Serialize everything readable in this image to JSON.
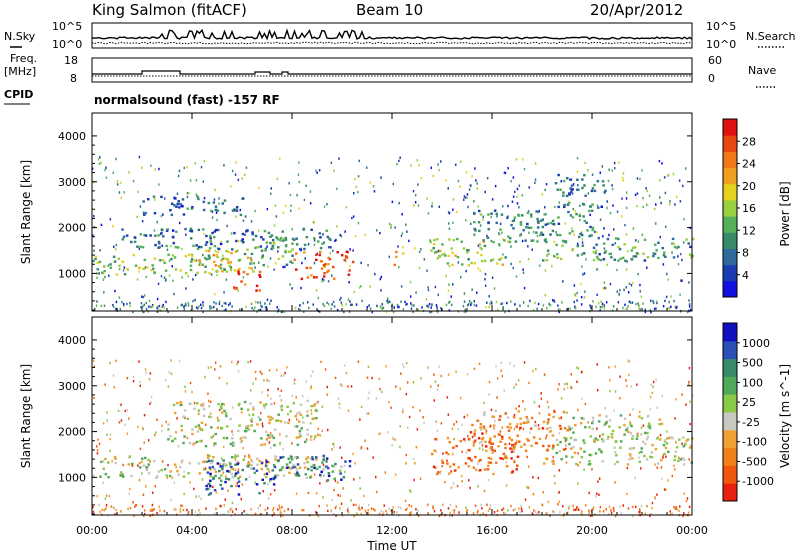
{
  "header": {
    "station": "King Salmon (fitACF)",
    "beam": "Beam 10",
    "date": "20/Apr/2012"
  },
  "strip_labels": {
    "nsky": "N.Sky",
    "nsky_ticks": [
      "10^5",
      "10^0"
    ],
    "nsearch": "N.Search",
    "nsearch_ticks": [
      "10^5",
      "10^0"
    ],
    "freq": "Freq.",
    "freq_unit": "[MHz]",
    "freq_ticks": [
      "18",
      "8"
    ],
    "nave": "Nave",
    "nave_ticks": [
      "60",
      "0"
    ],
    "cpid": "CPID",
    "cpid_text": "normalsound (fast) -157 RF"
  },
  "colors": {
    "power": [
      "#1010e0",
      "#1a3cb0",
      "#2e6a9a",
      "#3a8a6a",
      "#56b05a",
      "#9ad040",
      "#e6d020",
      "#f0a020",
      "#f07818",
      "#e84810",
      "#e01010"
    ],
    "velocity": [
      "#1010c0",
      "#2a50b8",
      "#3a8a6a",
      "#52a85a",
      "#8ac848",
      "#c8c8c0",
      "#f0a030",
      "#f08018",
      "#f05810",
      "#e82010"
    ]
  },
  "chart_data": [
    {
      "type": "heatmap",
      "title": "",
      "xlabel": "Time UT",
      "ylabel": "Slant Range [km]",
      "x_ticks": [
        "00:00",
        "04:00",
        "08:00",
        "12:00",
        "16:00",
        "20:00",
        "00:00"
      ],
      "y_ticks": [
        "1000",
        "2000",
        "3000",
        "4000"
      ],
      "ylim": [
        180,
        4500
      ],
      "colorbar_label": "Power [dB]",
      "colorbar_ticks": [
        "4",
        "8",
        "12",
        "16",
        "20",
        "24",
        "28"
      ],
      "bands": [
        {
          "t0": 0.0,
          "t1": 6.0,
          "r0": 1000,
          "r1": 1450,
          "level": 0.45
        },
        {
          "t0": 4.0,
          "t1": 6.5,
          "r0": 1050,
          "r1": 1600,
          "level": 0.6
        },
        {
          "t0": 5.6,
          "t1": 6.8,
          "r0": 650,
          "r1": 1100,
          "level": 0.9
        },
        {
          "t0": 6.0,
          "t1": 8.0,
          "r0": 1200,
          "r1": 1800,
          "level": 0.4
        },
        {
          "t0": 8.0,
          "t1": 10.4,
          "r0": 900,
          "r1": 1500,
          "level": 0.85
        },
        {
          "t0": 1.0,
          "t1": 10.0,
          "r0": 1550,
          "r1": 2000,
          "level": 0.25
        },
        {
          "t0": 2.0,
          "t1": 6.0,
          "r0": 2300,
          "r1": 2700,
          "level": 0.2
        },
        {
          "t0": 12.0,
          "t1": 12.5,
          "r0": 1200,
          "r1": 1500,
          "level": 0.7
        },
        {
          "t0": 13.5,
          "t1": 16.5,
          "r0": 1200,
          "r1": 1800,
          "level": 0.5
        },
        {
          "t0": 15.0,
          "t1": 20.0,
          "r0": 1700,
          "r1": 2400,
          "level": 0.3
        },
        {
          "t0": 18.0,
          "t1": 24.0,
          "r0": 1300,
          "r1": 1800,
          "level": 0.35
        },
        {
          "t0": 18.5,
          "t1": 20.5,
          "r0": 2400,
          "r1": 3200,
          "level": 0.25
        }
      ]
    },
    {
      "type": "heatmap",
      "title": "",
      "xlabel": "Time UT",
      "ylabel": "Slant Range [km]",
      "x_ticks": [
        "00:00",
        "04:00",
        "08:00",
        "12:00",
        "16:00",
        "20:00",
        "00:00"
      ],
      "y_ticks": [
        "1000",
        "2000",
        "3000",
        "4000"
      ],
      "ylim": [
        180,
        4500
      ],
      "colorbar_label": "Velocity [m s^-1]",
      "colorbar_ticks": [
        "1000",
        "500",
        "100",
        "25",
        "-25",
        "-100",
        "-500",
        "-1000"
      ],
      "bands": [
        {
          "t0": 0.0,
          "t1": 10.0,
          "r0": 1000,
          "r1": 1500,
          "level": 0.5
        },
        {
          "t0": 4.5,
          "t1": 7.5,
          "r0": 650,
          "r1": 1400,
          "level": 0.85
        },
        {
          "t0": 7.5,
          "t1": 10.4,
          "r0": 950,
          "r1": 1500,
          "level": 0.8
        },
        {
          "t0": 3.0,
          "t1": 9.0,
          "r0": 1700,
          "r1": 2700,
          "level": 0.5
        },
        {
          "t0": 13.5,
          "t1": 17.0,
          "r0": 1100,
          "r1": 1900,
          "level": 0.2
        },
        {
          "t0": 15.0,
          "t1": 19.0,
          "r0": 1600,
          "r1": 2500,
          "level": 0.25
        },
        {
          "t0": 18.0,
          "t1": 24.0,
          "r0": 1300,
          "r1": 1900,
          "level": 0.5
        },
        {
          "t0": 19.0,
          "t1": 23.0,
          "r0": 1800,
          "r1": 2400,
          "level": 0.5
        }
      ]
    }
  ]
}
